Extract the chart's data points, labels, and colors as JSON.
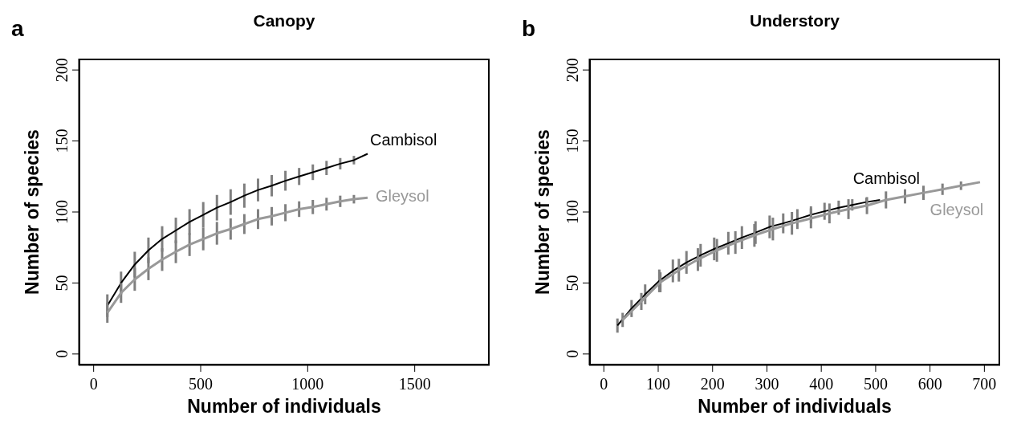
{
  "chart_data": [
    {
      "type": "line",
      "title": "Canopy",
      "annotations": [
        "a"
      ],
      "xlabel": "Number of individuals",
      "ylabel": "Number of species",
      "xlim": [
        -70,
        1850
      ],
      "xticks": [
        0,
        500,
        1000,
        1500
      ],
      "ylim": [
        -8,
        208
      ],
      "yticks": [
        0,
        50,
        100,
        150,
        200
      ],
      "series": [
        {
          "name": "Cambisol",
          "color": "#000000",
          "x": [
            64,
            128,
            192,
            256,
            320,
            384,
            448,
            512,
            576,
            640,
            704,
            768,
            832,
            896,
            960,
            1024,
            1088,
            1152,
            1216,
            1280
          ],
          "values": [
            34,
            50,
            63,
            73,
            81,
            87,
            93,
            98,
            103,
            107,
            111.5,
            115.5,
            118.5,
            122,
            125,
            128,
            131,
            134,
            136.5,
            141
          ],
          "errors": [
            8,
            8,
            9,
            9,
            9,
            9,
            9,
            9,
            9,
            9,
            8.5,
            8,
            7.5,
            7,
            6,
            5.5,
            5,
            4,
            3,
            null
          ]
        },
        {
          "name": "Gleysol",
          "color": "#999999",
          "x": [
            64,
            128,
            192,
            256,
            320,
            384,
            448,
            512,
            576,
            640,
            704,
            768,
            832,
            896,
            960,
            1024,
            1088,
            1152,
            1216,
            1280
          ],
          "values": [
            29,
            43,
            52.5,
            60,
            66.5,
            72,
            77,
            81,
            85,
            88,
            91.5,
            95,
            97,
            99.5,
            102,
            103.5,
            105.5,
            107.5,
            109,
            110
          ],
          "errors": [
            7,
            7,
            8,
            8,
            8,
            8,
            8,
            8,
            8,
            7.5,
            7,
            7,
            6.5,
            6,
            5.5,
            5,
            4.5,
            4,
            3,
            null
          ]
        }
      ]
    },
    {
      "type": "line",
      "title": "Understory",
      "annotations": [
        "b"
      ],
      "xlabel": "Number of individuals",
      "ylabel": "Number of species",
      "xlim": [
        -27,
        729
      ],
      "xticks": [
        0,
        100,
        200,
        300,
        400,
        500,
        600,
        700
      ],
      "ylim": [
        -8,
        208
      ],
      "yticks": [
        0,
        50,
        100,
        150,
        200
      ],
      "series": [
        {
          "name": "Cambisol",
          "color": "#000000",
          "x": [
            25,
            51,
            76,
            102,
            127,
            152,
            178,
            203,
            229,
            254,
            279,
            305,
            330,
            356,
            381,
            406,
            432,
            457,
            483,
            508
          ],
          "values": [
            20,
            32,
            42,
            51.5,
            58.5,
            64.5,
            69.5,
            74,
            78,
            82,
            85.5,
            89.5,
            92,
            95,
            98,
            100.5,
            103,
            105,
            107,
            108.5
          ],
          "errors": [
            5,
            6,
            7,
            8,
            8,
            8,
            8,
            8,
            8,
            8,
            8,
            8,
            7,
            7,
            6,
            6,
            5,
            4,
            3,
            null
          ]
        },
        {
          "name": "Gleysol",
          "color": "#999999",
          "x": [
            34.6,
            69,
            104,
            138,
            173,
            208,
            242,
            277,
            311,
            346,
            381,
            415,
            450,
            484,
            519,
            554,
            588,
            623,
            657,
            692
          ],
          "values": [
            24,
            37,
            50.5,
            59,
            66.5,
            73,
            78.5,
            83.5,
            88,
            92,
            95.5,
            99,
            102,
            104.5,
            108.5,
            111,
            113.5,
            116,
            118.5,
            121
          ],
          "errors": [
            5,
            6,
            7,
            8,
            8,
            8,
            8,
            8,
            8,
            8,
            7,
            7,
            7,
            6,
            6,
            5,
            5,
            4,
            3,
            null
          ]
        }
      ]
    }
  ]
}
